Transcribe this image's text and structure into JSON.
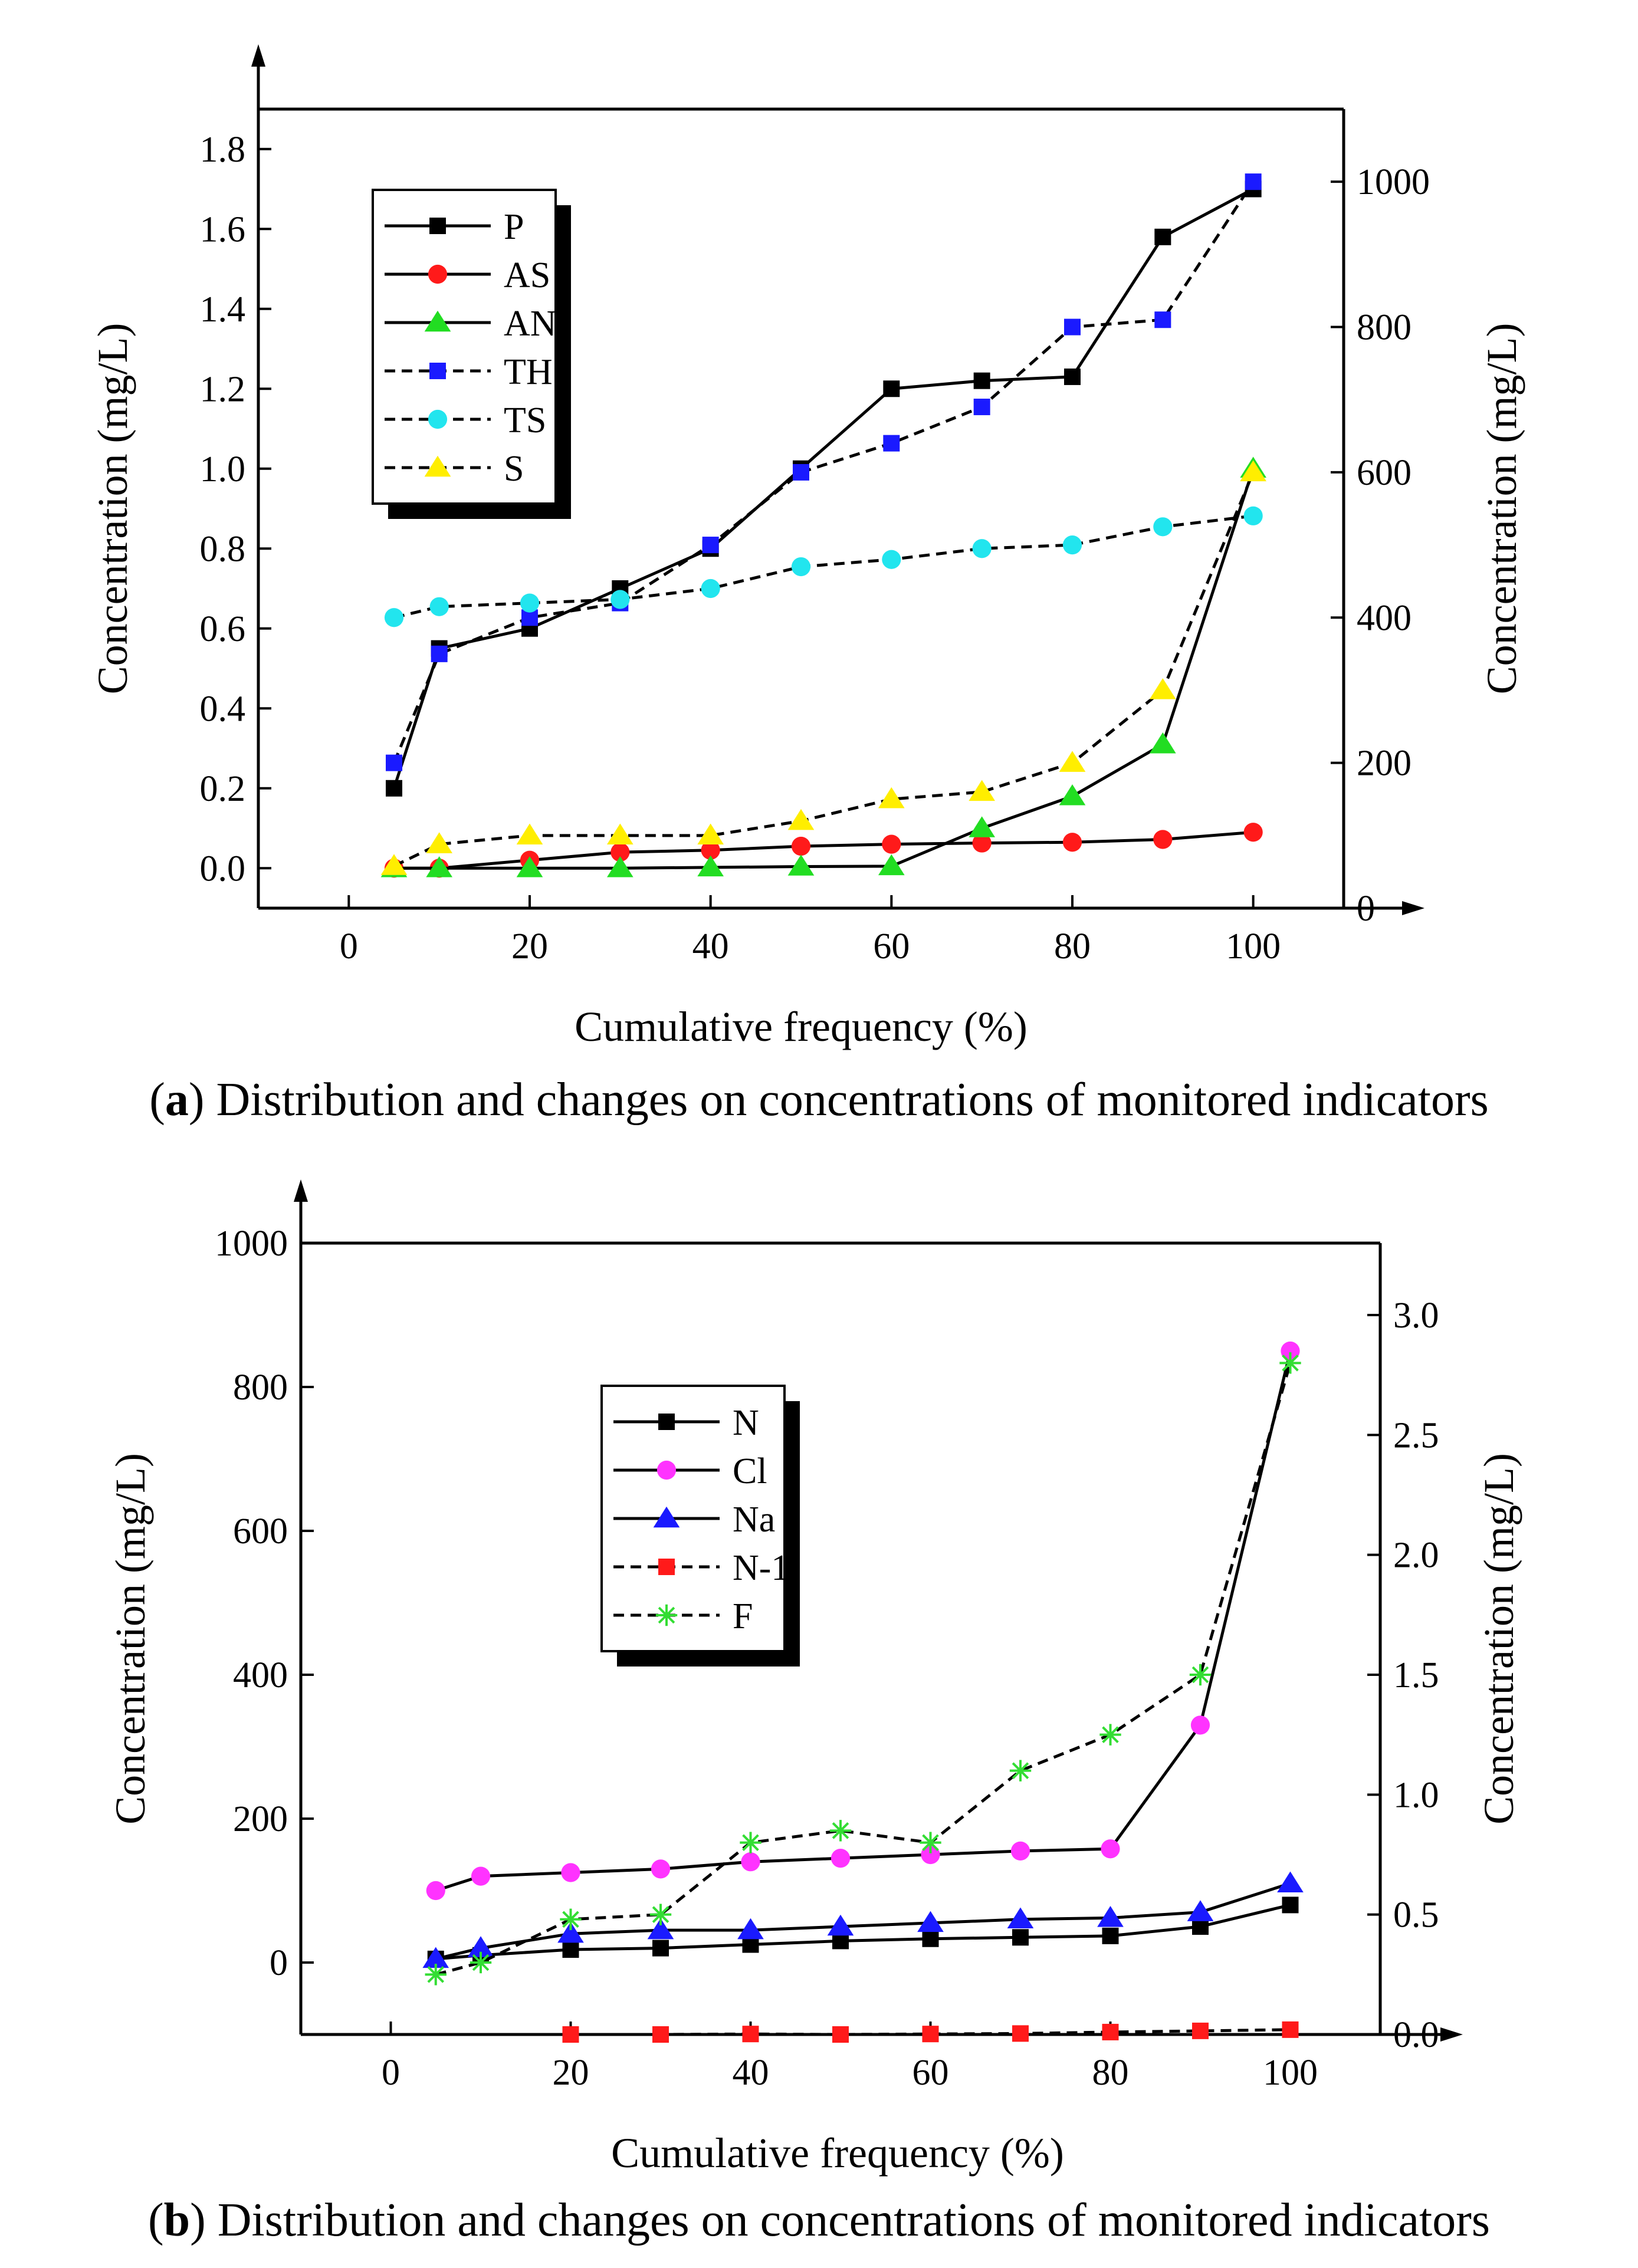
{
  "chart_data": [
    {
      "type": "line",
      "panel_letter": "a",
      "caption": "Distribution and changes on concentrations of monitored indicators",
      "xlabel": "Cumulative frequency (%)",
      "ylabel_left": "Concentration (mg/L)",
      "ylabel_right": "Concentration (mg/L)",
      "xlim": [
        -10,
        110
      ],
      "ylim_left": [
        -0.1,
        1.9
      ],
      "ylim_right": [
        0,
        1100
      ],
      "xticks": [
        "0",
        "20",
        "40",
        "60",
        "80",
        "100"
      ],
      "yticks_left": [
        "0.0",
        "0.2",
        "0.4",
        "0.6",
        "0.8",
        "1.0",
        "1.2",
        "1.4",
        "1.6",
        "1.8"
      ],
      "yticks_right": [
        "0",
        "200",
        "400",
        "600",
        "800",
        "1000"
      ],
      "legend_position": "top-left",
      "series": [
        {
          "name": "P",
          "axis": "left",
          "line": "solid",
          "marker": "square",
          "color": "#000000",
          "x": [
            5,
            10,
            20,
            30,
            40,
            50,
            60,
            70,
            80,
            90,
            100
          ],
          "values": [
            0.2,
            0.55,
            0.6,
            0.7,
            0.8,
            1.0,
            1.2,
            1.22,
            1.23,
            1.58,
            1.7
          ]
        },
        {
          "name": "AS",
          "axis": "left",
          "line": "solid",
          "marker": "circle",
          "color": "#ff1a1a",
          "x": [
            5,
            10,
            20,
            30,
            40,
            50,
            60,
            70,
            80,
            90,
            100
          ],
          "values": [
            0.0,
            0.0,
            0.02,
            0.04,
            0.045,
            0.055,
            0.06,
            0.063,
            0.065,
            0.072,
            0.09
          ]
        },
        {
          "name": "AN",
          "axis": "left",
          "line": "solid",
          "marker": "triangle",
          "color": "#22dd22",
          "x": [
            5,
            10,
            20,
            30,
            40,
            50,
            60,
            70,
            80,
            90,
            100
          ],
          "values": [
            0.0,
            0.0,
            0.0,
            0.0,
            0.002,
            0.004,
            0.005,
            0.1,
            0.18,
            0.31,
            1.0
          ]
        },
        {
          "name": "TH",
          "axis": "right",
          "line": "dashed",
          "marker": "square",
          "color": "#1a1aff",
          "x": [
            5,
            10,
            20,
            30,
            40,
            50,
            60,
            70,
            80,
            90,
            100
          ],
          "values": [
            200,
            350,
            400,
            420,
            500,
            600,
            640,
            690,
            800,
            810,
            1000
          ]
        },
        {
          "name": "TS",
          "axis": "right",
          "line": "dashed",
          "marker": "circle",
          "color": "#22e5ee",
          "x": [
            5,
            10,
            20,
            30,
            40,
            50,
            60,
            70,
            80,
            90,
            100
          ],
          "values": [
            400,
            415,
            420,
            425,
            440,
            470,
            480,
            495,
            500,
            525,
            540
          ]
        },
        {
          "name": "S",
          "axis": "right",
          "line": "dashed",
          "marker": "triangle",
          "color": "#ffee00",
          "x": [
            5,
            10,
            20,
            30,
            40,
            50,
            60,
            70,
            80,
            90,
            100
          ],
          "values": [
            58,
            88,
            100,
            100,
            100,
            120,
            150,
            160,
            200,
            300,
            600
          ]
        }
      ]
    },
    {
      "type": "line",
      "panel_letter": "b",
      "caption": "Distribution and changes on concentrations of monitored indicators",
      "xlabel": "Cumulative frequency (%)",
      "ylabel_left": "Concentration (mg/L)",
      "ylabel_right": "Concentration (mg/L)",
      "xlim": [
        -10,
        110
      ],
      "ylim_left": [
        -100,
        1000
      ],
      "ylim_right": [
        0,
        3.3
      ],
      "xticks": [
        "0",
        "20",
        "40",
        "60",
        "80",
        "100"
      ],
      "yticks_left": [
        "0",
        "200",
        "400",
        "600",
        "800",
        "1000"
      ],
      "yticks_right": [
        "0.0",
        "0.5",
        "1.0",
        "1.5",
        "2.0",
        "2.5",
        "3.0"
      ],
      "legend_position": "top-center",
      "series": [
        {
          "name": "N",
          "axis": "left",
          "line": "solid",
          "marker": "square",
          "color": "#000000",
          "x": [
            5,
            10,
            20,
            30,
            40,
            50,
            60,
            70,
            80,
            90,
            100
          ],
          "values": [
            5,
            10,
            18,
            20,
            25,
            30,
            33,
            35,
            37,
            50,
            80
          ]
        },
        {
          "name": "Cl",
          "axis": "left",
          "line": "solid",
          "marker": "circle",
          "color": "#ff33ff",
          "x": [
            5,
            10,
            20,
            30,
            40,
            50,
            60,
            70,
            80,
            90,
            100
          ],
          "values": [
            100,
            120,
            125,
            130,
            140,
            145,
            150,
            155,
            158,
            330,
            850
          ]
        },
        {
          "name": "Na",
          "axis": "left",
          "line": "solid",
          "marker": "triangle",
          "color": "#1a1aff",
          "x": [
            5,
            10,
            20,
            30,
            40,
            50,
            60,
            70,
            80,
            90,
            100
          ],
          "values": [
            5,
            20,
            40,
            45,
            45,
            50,
            55,
            60,
            62,
            70,
            110
          ]
        },
        {
          "name": "N-1",
          "axis": "right",
          "line": "dashed",
          "marker": "square",
          "color": "#ff1a1a",
          "x": [
            20,
            30,
            40,
            50,
            60,
            70,
            80,
            90,
            100
          ],
          "values": [
            0.0,
            0.0,
            0.002,
            0.0,
            0.002,
            0.004,
            0.01,
            0.015,
            0.02
          ]
        },
        {
          "name": "F",
          "axis": "right",
          "line": "dashed",
          "marker": "asterisk",
          "color": "#33dd33",
          "x": [
            5,
            10,
            20,
            30,
            40,
            50,
            60,
            70,
            80,
            90,
            100
          ],
          "values": [
            0.25,
            0.3,
            0.48,
            0.5,
            0.8,
            0.85,
            0.8,
            1.1,
            1.25,
            1.5,
            2.8
          ]
        }
      ]
    }
  ]
}
